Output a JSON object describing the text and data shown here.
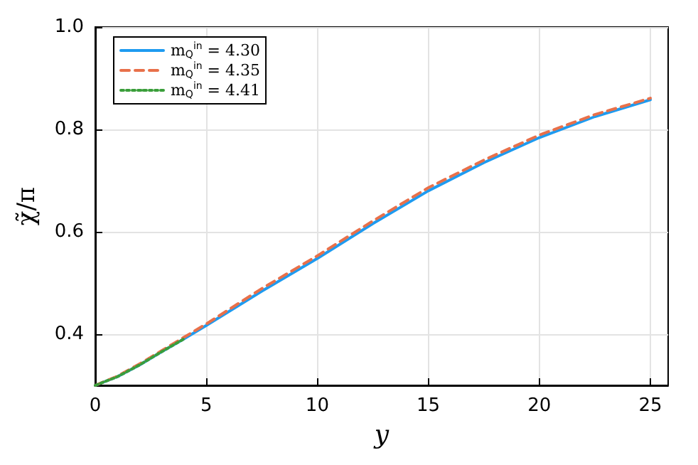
{
  "chart_data": {
    "type": "line",
    "xlabel": "y",
    "ylabel": "χ̃/π",
    "x": [
      0,
      1,
      2,
      3,
      4,
      5,
      7.5,
      10,
      12.5,
      15,
      17.5,
      20,
      22.5,
      25
    ],
    "series": [
      {
        "name": "m$_{Q}$$^{in}$ = 4.30",
        "color": "#1e9bf0",
        "line_style": "solid",
        "values": [
          0.3,
          0.317,
          0.34,
          0.366,
          0.391,
          0.417,
          0.484,
          0.548,
          0.616,
          0.68,
          0.735,
          0.784,
          0.825,
          0.858
        ]
      },
      {
        "name": "m$_{Q}$$^{in}$ = 4.35",
        "color": "#e8704a",
        "line_style": "dashed",
        "values": [
          0.3,
          0.318,
          0.342,
          0.368,
          0.394,
          0.42,
          0.489,
          0.553,
          0.621,
          0.686,
          0.74,
          0.789,
          0.829,
          0.861
        ]
      },
      {
        "name": "m$_{Q}$$^{in}$ = 4.41",
        "color": "#3a9e3a",
        "line_style": "dotted",
        "values": [
          0.3,
          0.317,
          0.34,
          0.366,
          0.391,
          null,
          null,
          null,
          null,
          null,
          null,
          null,
          null,
          null
        ]
      }
    ],
    "xlim": [
      0,
      25.8
    ],
    "ylim": [
      0.3,
      1.0
    ],
    "xticks": [
      0,
      5,
      10,
      15,
      20,
      25
    ],
    "yticks": [
      0.4,
      0.6,
      0.8,
      {
        "value": 1.0,
        "label": "1.0"
      }
    ],
    "grid": true,
    "legend": "top left",
    "marker": "none"
  }
}
